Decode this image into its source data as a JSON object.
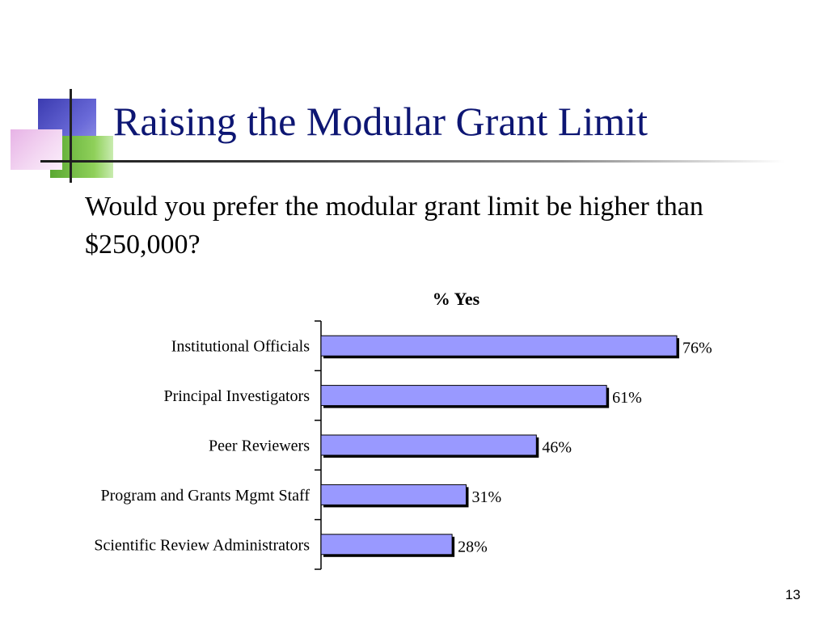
{
  "slide": {
    "title": "Raising the Modular Grant Limit",
    "question": "Would you prefer the modular grant limit be higher than $250,000?",
    "page_number": "13"
  },
  "colors": {
    "title": "#0d1673",
    "bar_fill": "#9999ff",
    "bar_shadow": "#000000"
  },
  "chart_data": {
    "type": "bar",
    "orientation": "horizontal",
    "title": "% Yes",
    "categories": [
      "Institutional Officials",
      "Principal Investigators",
      "Peer Reviewers",
      "Program and Grants Mgmt Staff",
      "Scientific Review Administrators"
    ],
    "values": [
      76,
      61,
      46,
      31,
      28
    ],
    "data_labels": [
      "76%",
      "61%",
      "46%",
      "31%",
      "28%"
    ],
    "xlim": [
      0,
      100
    ],
    "grid": false,
    "legend": "none"
  }
}
